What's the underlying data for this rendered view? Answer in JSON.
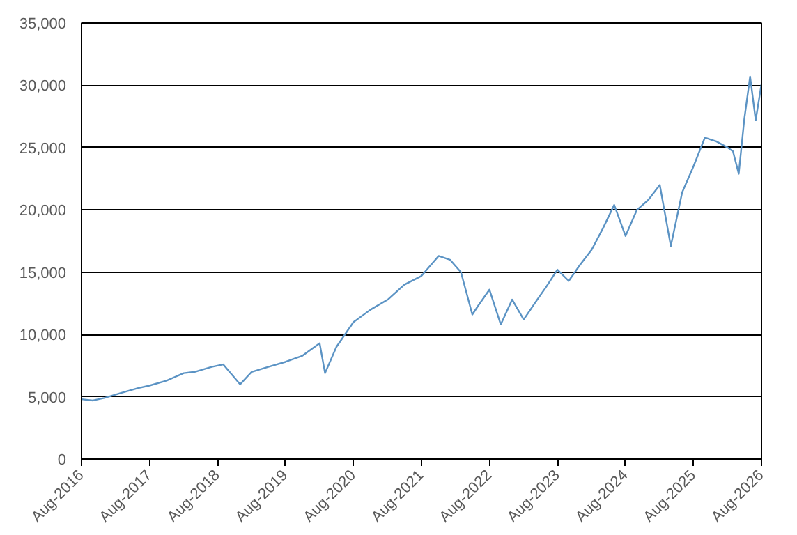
{
  "chart_data": {
    "type": "line",
    "x": [
      "2016-08",
      "2016-10",
      "2016-12",
      "2017-03",
      "2017-06",
      "2017-08",
      "2017-11",
      "2018-02",
      "2018-04",
      "2018-07",
      "2018-09",
      "2018-12",
      "2019-02",
      "2019-05",
      "2019-08",
      "2019-11",
      "2020-02",
      "2020-03",
      "2020-05",
      "2020-08",
      "2020-11",
      "2021-02",
      "2021-05",
      "2021-08",
      "2021-11",
      "2022-01",
      "2022-03",
      "2022-05",
      "2022-06",
      "2022-08",
      "2022-10",
      "2022-12",
      "2023-02",
      "2023-04",
      "2023-06",
      "2023-08",
      "2023-10",
      "2023-12",
      "2024-02",
      "2024-04",
      "2024-06",
      "2024-08",
      "2024-10",
      "2024-12",
      "2025-02",
      "2025-04",
      "2025-06",
      "2025-08",
      "2025-10",
      "2025-12",
      "2026-02",
      "2026-03",
      "2026-04",
      "2026-05",
      "2026-06",
      "2026-07",
      "2026-08"
    ],
    "series": [
      {
        "color": "#5b93c4",
        "values": [
          4800,
          4700,
          4900,
          5300,
          5700,
          5900,
          6300,
          6900,
          7000,
          7400,
          7600,
          6000,
          7000,
          7400,
          7800,
          8300,
          9300,
          6900,
          9000,
          11000,
          12000,
          12800,
          14000,
          14700,
          16300,
          16000,
          15000,
          11600,
          12300,
          13600,
          10800,
          12800,
          11200,
          12500,
          13800,
          15200,
          14300,
          15600,
          16800,
          18500,
          20400,
          17900,
          20000,
          20800,
          22000,
          17100,
          21400,
          23500,
          25800,
          25500,
          25000,
          24700,
          22900,
          27300,
          30700,
          27200,
          30100
        ]
      }
    ],
    "ylim": [
      0,
      35000
    ],
    "yticks": [
      {
        "value": 0,
        "label": "0"
      },
      {
        "value": 5000,
        "label": "5,000"
      },
      {
        "value": 10000,
        "label": "10,000"
      },
      {
        "value": 15000,
        "label": "15,000"
      },
      {
        "value": 20000,
        "label": "20,000"
      },
      {
        "value": 25000,
        "label": "25,000"
      },
      {
        "value": 30000,
        "label": "30,000"
      },
      {
        "value": 35000,
        "label": "35,000"
      }
    ],
    "xlim": [
      "2016-08",
      "2026-08"
    ],
    "xticks": [
      {
        "value": "2016-08",
        "label": "Aug-2016"
      },
      {
        "value": "2017-08",
        "label": "Aug-2017"
      },
      {
        "value": "2018-08",
        "label": "Aug-2018"
      },
      {
        "value": "2019-08",
        "label": "Aug-2019"
      },
      {
        "value": "2020-08",
        "label": "Aug-2020"
      },
      {
        "value": "2021-08",
        "label": "Aug-2021"
      },
      {
        "value": "2022-08",
        "label": "Aug-2022"
      },
      {
        "value": "2023-08",
        "label": "Aug-2023"
      },
      {
        "value": "2024-08",
        "label": "Aug-2024"
      },
      {
        "value": "2025-08",
        "label": "Aug-2025"
      },
      {
        "value": "2026-08",
        "label": "Aug-2026"
      }
    ],
    "grid": "y",
    "marker": "none",
    "line_style": "solid"
  }
}
